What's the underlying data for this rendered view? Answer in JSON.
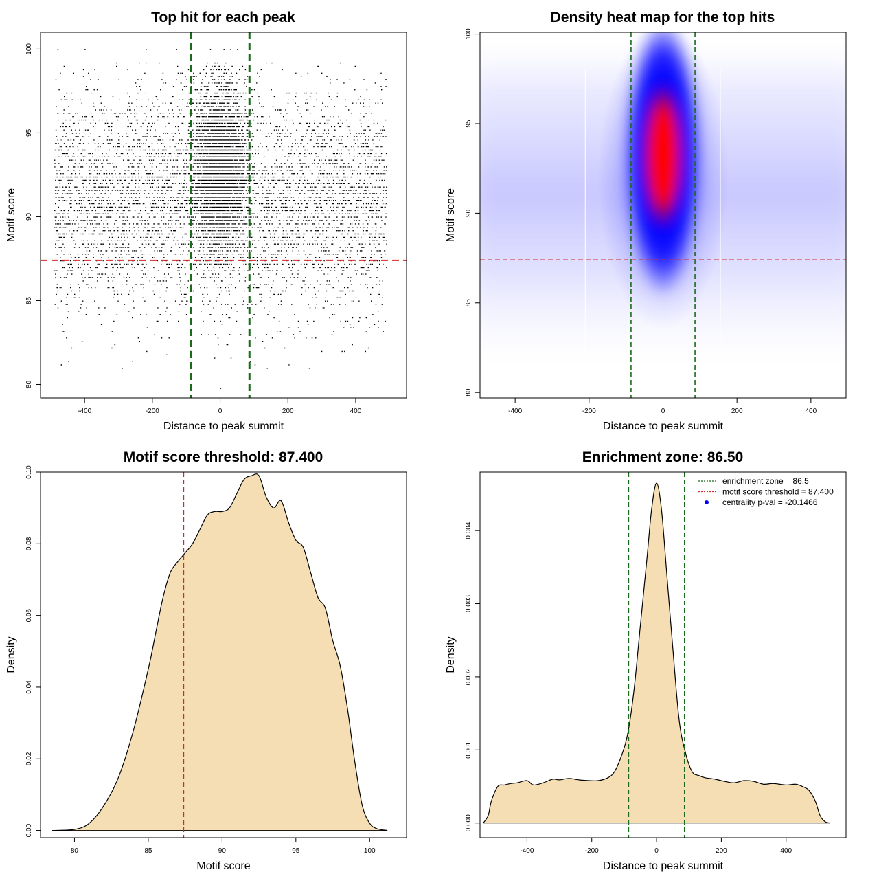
{
  "colors": {
    "threshold": "#d62728",
    "zone": "#1a6b1a",
    "fill": "#f5deb3",
    "heat_low": "#ffffff",
    "heat_mid": "#0000ff",
    "heat_high": "#ff0000",
    "legend_point": "#0000ff"
  },
  "chart_data": [
    {
      "id": "scatter",
      "type": "scatter",
      "title": "Top hit for each peak",
      "xlabel": "Distance to peak summit",
      "ylabel": "Motif score",
      "xlim": [
        -530,
        550
      ],
      "ylim": [
        79.2,
        101
      ],
      "xticks": [
        -400,
        -200,
        0,
        200,
        400
      ],
      "yticks": [
        80,
        85,
        90,
        95,
        100
      ],
      "grid": false,
      "vlines": [
        -86.5,
        86.5
      ],
      "hline": 87.4,
      "x_range": [
        -500,
        500
      ],
      "y_range": [
        80.8,
        100
      ]
    },
    {
      "id": "heatmap",
      "type": "heatmap",
      "title": "Density heat map for the top hits",
      "xlabel": "Distance to peak summit",
      "ylabel": "Motif score",
      "xlim": [
        -495,
        495
      ],
      "ylim": [
        79.7,
        100.1
      ],
      "xticks": [
        -400,
        -200,
        0,
        200,
        400
      ],
      "yticks": [
        80,
        85,
        90,
        95,
        100
      ],
      "grid": false,
      "vlines": [
        -86.5,
        86.5
      ],
      "hline": 87.4
    },
    {
      "id": "score_density",
      "type": "area",
      "title": "Motif score threshold: 87.400",
      "xlabel": "Motif score",
      "ylabel": "Density",
      "xlim": [
        77.7,
        102.5
      ],
      "ylim": [
        -0.002,
        0.1
      ],
      "xticks": [
        80,
        85,
        90,
        95,
        100
      ],
      "yticks": [
        0.0,
        0.02,
        0.04,
        0.06,
        0.08,
        0.1
      ],
      "ytick_labels": [
        "0.00",
        "0.02",
        "0.04",
        "0.06",
        "0.08",
        "0.10"
      ],
      "grid": false,
      "vline": 87.4,
      "x": [
        78.5,
        80,
        81,
        82,
        83,
        84,
        85,
        85.5,
        86,
        86.5,
        87,
        87.4,
        88,
        88.5,
        89,
        89.5,
        90,
        90.5,
        91,
        91.5,
        92,
        92.5,
        93,
        93.5,
        94,
        94.5,
        95,
        95.5,
        96,
        96.5,
        97,
        97.5,
        98,
        98.5,
        99,
        99.5,
        100,
        100.5,
        101.2
      ],
      "y": [
        0.0,
        0.0003,
        0.002,
        0.007,
        0.015,
        0.028,
        0.045,
        0.055,
        0.065,
        0.072,
        0.075,
        0.077,
        0.08,
        0.084,
        0.088,
        0.089,
        0.089,
        0.09,
        0.094,
        0.098,
        0.099,
        0.099,
        0.093,
        0.09,
        0.092,
        0.086,
        0.081,
        0.079,
        0.072,
        0.065,
        0.062,
        0.053,
        0.046,
        0.034,
        0.019,
        0.007,
        0.002,
        0.0005,
        0.0
      ]
    },
    {
      "id": "distance_density",
      "type": "area",
      "title": "Enrichment zone: 86.50",
      "xlabel": "Distance to peak summit",
      "ylabel": "Density",
      "xlim": [
        -545,
        585
      ],
      "ylim": [
        -0.0002,
        0.0048
      ],
      "xticks": [
        -400,
        -200,
        0,
        200,
        400
      ],
      "yticks": [
        0.0,
        0.001,
        0.002,
        0.003,
        0.004
      ],
      "ytick_labels": [
        "0.000",
        "0.001",
        "0.002",
        "0.003",
        "0.004"
      ],
      "grid": false,
      "vlines": [
        -86.5,
        86.5
      ],
      "legend_position": "top-right",
      "legend": [
        {
          "label": "enrichment zone = 86.5",
          "style": "zone-dotted"
        },
        {
          "label": "motif score threshold = 87.400",
          "style": "threshold-dotted"
        },
        {
          "label": "centrality p-val = -20.1466",
          "style": "point"
        }
      ],
      "x": [
        -535,
        -520,
        -510,
        -490,
        -470,
        -450,
        -430,
        -400,
        -380,
        -350,
        -320,
        -300,
        -270,
        -240,
        -210,
        -180,
        -150,
        -130,
        -110,
        -90,
        -70,
        -50,
        -30,
        -15,
        0,
        15,
        30,
        50,
        70,
        90,
        110,
        130,
        150,
        180,
        210,
        240,
        270,
        300,
        330,
        360,
        400,
        430,
        450,
        470,
        490,
        505,
        520,
        535
      ],
      "y": [
        0.0,
        0.0001,
        0.0003,
        0.0005,
        0.00052,
        0.00054,
        0.00055,
        0.00058,
        0.00052,
        0.00055,
        0.0006,
        0.00059,
        0.00061,
        0.00059,
        0.00058,
        0.00058,
        0.00062,
        0.0007,
        0.0009,
        0.0012,
        0.0018,
        0.0027,
        0.0036,
        0.0043,
        0.00465,
        0.0043,
        0.0035,
        0.0024,
        0.0014,
        0.00095,
        0.0007,
        0.00065,
        0.00062,
        0.0006,
        0.00057,
        0.00055,
        0.00058,
        0.00057,
        0.00053,
        0.00054,
        0.00052,
        0.00053,
        0.0005,
        0.00045,
        0.0003,
        0.0001,
        2e-05,
        0.0
      ]
    }
  ]
}
